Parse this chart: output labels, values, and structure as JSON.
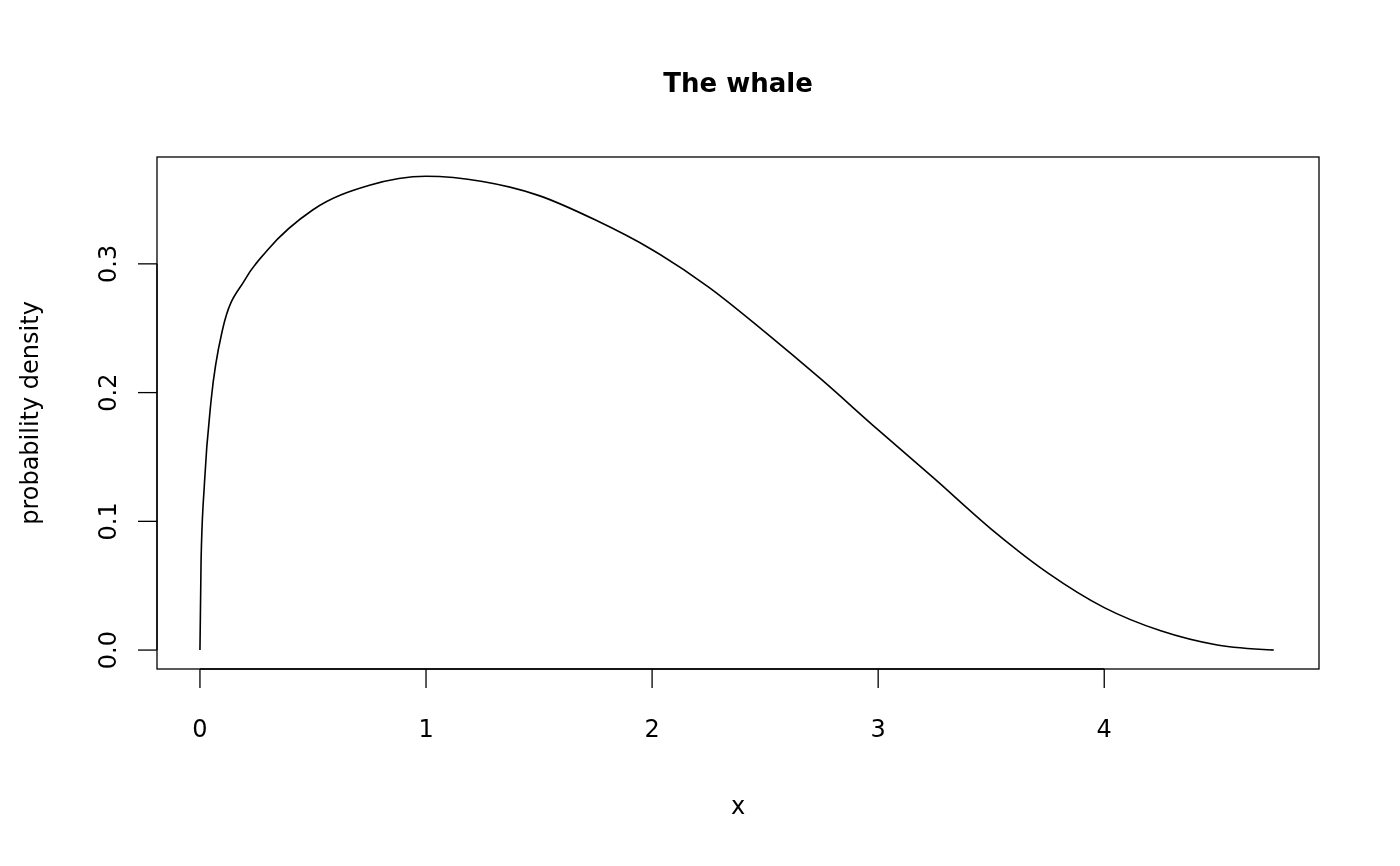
{
  "chart_data": {
    "type": "line",
    "title": "The whale",
    "xlabel": "x",
    "ylabel": "probability density",
    "series": [
      {
        "color": "#000000",
        "x": [
          0,
          0.005,
          0.02,
          0.05,
          0.1,
          0.2,
          0.3,
          0.5,
          0.75,
          1,
          1.25,
          1.5,
          1.75,
          2,
          2.25,
          2.5,
          2.75,
          3,
          3.25,
          3.5,
          3.75,
          4,
          4.25,
          4.5,
          4.75
        ],
        "values": [
          0,
          0.07,
          0.13,
          0.195,
          0.249,
          0.288,
          0.311,
          0.342,
          0.361,
          0.368,
          0.364,
          0.353,
          0.334,
          0.311,
          0.282,
          0.247,
          0.21,
          0.171,
          0.133,
          0.094,
          0.06,
          0.033,
          0.015,
          0.004,
          0.0
        ]
      }
    ],
    "xlim": [
      -0.19,
      4.95
    ],
    "ylim": [
      -0.0147,
      0.383
    ],
    "xticks": [
      0,
      1,
      2,
      3,
      4
    ],
    "yticks": [
      {
        "value": 0,
        "label": "0.0"
      },
      {
        "value": 0.1,
        "label": "0.1"
      },
      {
        "value": 0.2,
        "label": "0.2"
      },
      {
        "value": 0.3,
        "label": "0.3"
      }
    ],
    "marker": "none",
    "line_style": "solid"
  }
}
